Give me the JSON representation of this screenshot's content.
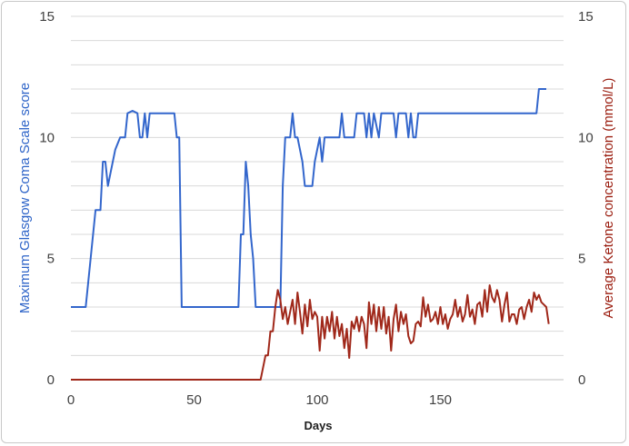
{
  "chart_data": {
    "type": "line",
    "title": "",
    "xlabel": "Days",
    "ylabel_left": "Maximum Glasgow Coma Scale score",
    "ylabel_right": "Average Ketone concentration (mmol/L)",
    "xlim": [
      0,
      200
    ],
    "ylim_left": [
      0,
      15
    ],
    "ylim_right": [
      0,
      15
    ],
    "x_ticks": [
      "0",
      "50",
      "100",
      "150"
    ],
    "y_ticks_left": [
      "0",
      "5",
      "10",
      "15"
    ],
    "y_ticks_right": [
      "0",
      "5",
      "10",
      "15"
    ],
    "grid": "horizontal, every 1 unit",
    "series": [
      {
        "axis": "left",
        "color": "#3366cc",
        "points": [
          [
            0,
            3
          ],
          [
            6,
            3
          ],
          [
            8,
            5
          ],
          [
            10,
            7
          ],
          [
            12,
            7
          ],
          [
            13,
            9
          ],
          [
            14,
            9
          ],
          [
            15,
            8
          ],
          [
            16,
            8.5
          ],
          [
            18,
            9.5
          ],
          [
            20,
            10
          ],
          [
            22,
            10
          ],
          [
            23,
            11
          ],
          [
            25,
            11.1
          ],
          [
            27,
            11
          ],
          [
            28,
            10
          ],
          [
            29,
            10
          ],
          [
            30,
            11
          ],
          [
            31,
            10
          ],
          [
            32,
            11
          ],
          [
            33,
            11
          ],
          [
            42,
            11
          ],
          [
            43,
            10
          ],
          [
            44,
            10
          ],
          [
            45,
            3
          ],
          [
            68,
            3
          ],
          [
            69,
            6
          ],
          [
            70,
            6
          ],
          [
            71,
            9
          ],
          [
            72,
            8
          ],
          [
            73,
            6
          ],
          [
            74,
            5
          ],
          [
            75,
            3
          ],
          [
            85,
            3
          ],
          [
            86,
            8
          ],
          [
            87,
            10
          ],
          [
            89,
            10
          ],
          [
            90,
            11
          ],
          [
            91,
            10
          ],
          [
            92,
            10
          ],
          [
            94,
            9
          ],
          [
            95,
            8
          ],
          [
            98,
            8
          ],
          [
            99,
            9
          ],
          [
            101,
            10
          ],
          [
            102,
            9
          ],
          [
            103,
            10
          ],
          [
            109,
            10
          ],
          [
            110,
            11
          ],
          [
            111,
            10
          ],
          [
            115,
            10
          ],
          [
            116,
            11
          ],
          [
            119,
            11
          ],
          [
            120,
            10
          ],
          [
            121,
            11
          ],
          [
            122,
            10
          ],
          [
            123,
            11
          ],
          [
            125,
            10
          ],
          [
            126,
            11
          ],
          [
            131,
            11
          ],
          [
            132,
            10
          ],
          [
            133,
            11
          ],
          [
            136,
            11
          ],
          [
            137,
            10
          ],
          [
            138,
            11
          ],
          [
            139,
            10
          ],
          [
            140,
            10
          ],
          [
            141,
            11
          ],
          [
            189,
            11
          ],
          [
            190,
            12
          ],
          [
            193,
            12
          ]
        ]
      },
      {
        "axis": "right",
        "color": "#a0281a",
        "points": [
          [
            0,
            0
          ],
          [
            77,
            0
          ],
          [
            78,
            0.5
          ],
          [
            79,
            1
          ],
          [
            80,
            1
          ],
          [
            81,
            2
          ],
          [
            82,
            2
          ],
          [
            83,
            3
          ],
          [
            84,
            3.7
          ],
          [
            85,
            3.3
          ],
          [
            86,
            2.5
          ],
          [
            87,
            3
          ],
          [
            88,
            2.3
          ],
          [
            89,
            2.8
          ],
          [
            90,
            3.3
          ],
          [
            91,
            2.3
          ],
          [
            92,
            3.6
          ],
          [
            93,
            2.8
          ],
          [
            94,
            1.9
          ],
          [
            95,
            3.1
          ],
          [
            96,
            2.2
          ],
          [
            97,
            3.3
          ],
          [
            98,
            2.5
          ],
          [
            99,
            2.8
          ],
          [
            100,
            2.6
          ],
          [
            101,
            1.2
          ],
          [
            102,
            2.6
          ],
          [
            103,
            1.7
          ],
          [
            104,
            2.6
          ],
          [
            105,
            2.0
          ],
          [
            106,
            2.8
          ],
          [
            107,
            1.7
          ],
          [
            108,
            2.6
          ],
          [
            109,
            1.8
          ],
          [
            110,
            2.3
          ],
          [
            111,
            1.3
          ],
          [
            112,
            2.1
          ],
          [
            113,
            0.9
          ],
          [
            114,
            2.4
          ],
          [
            115,
            2.1
          ],
          [
            116,
            2.6
          ],
          [
            117,
            2.0
          ],
          [
            118,
            2.6
          ],
          [
            119,
            2.3
          ],
          [
            120,
            1.3
          ],
          [
            121,
            3.2
          ],
          [
            122,
            2.3
          ],
          [
            123,
            3.1
          ],
          [
            124,
            2.0
          ],
          [
            125,
            3.0
          ],
          [
            126,
            2.1
          ],
          [
            127,
            3.0
          ],
          [
            128,
            1.9
          ],
          [
            129,
            2.6
          ],
          [
            130,
            1.2
          ],
          [
            131,
            2.5
          ],
          [
            132,
            3.1
          ],
          [
            133,
            2.0
          ],
          [
            134,
            2.8
          ],
          [
            135,
            2.3
          ],
          [
            136,
            2.7
          ],
          [
            137,
            1.8
          ],
          [
            138,
            1.5
          ],
          [
            139,
            1.6
          ],
          [
            140,
            2.3
          ],
          [
            141,
            2.4
          ],
          [
            142,
            2.2
          ],
          [
            143,
            3.4
          ],
          [
            144,
            2.6
          ],
          [
            145,
            3.1
          ],
          [
            146,
            2.4
          ],
          [
            147,
            2.5
          ],
          [
            148,
            2.8
          ],
          [
            149,
            2.3
          ],
          [
            150,
            3.0
          ],
          [
            151,
            2.3
          ],
          [
            152,
            2.7
          ],
          [
            153,
            2.1
          ],
          [
            154,
            2.5
          ],
          [
            155,
            2.7
          ],
          [
            156,
            3.3
          ],
          [
            157,
            2.6
          ],
          [
            158,
            3.0
          ],
          [
            159,
            2.4
          ],
          [
            160,
            2.7
          ],
          [
            161,
            3.5
          ],
          [
            162,
            2.6
          ],
          [
            163,
            2.9
          ],
          [
            164,
            2.3
          ],
          [
            165,
            3.1
          ],
          [
            166,
            3.2
          ],
          [
            167,
            2.6
          ],
          [
            168,
            3.7
          ],
          [
            169,
            2.8
          ],
          [
            170,
            3.9
          ],
          [
            171,
            3.4
          ],
          [
            172,
            3.2
          ],
          [
            173,
            3.7
          ],
          [
            174,
            3.3
          ],
          [
            175,
            2.4
          ],
          [
            176,
            3.1
          ],
          [
            177,
            3.6
          ],
          [
            178,
            2.4
          ],
          [
            179,
            2.7
          ],
          [
            180,
            2.7
          ],
          [
            181,
            2.3
          ],
          [
            182,
            2.9
          ],
          [
            183,
            3.0
          ],
          [
            184,
            2.5
          ],
          [
            185,
            3.0
          ],
          [
            186,
            3.3
          ],
          [
            187,
            2.8
          ],
          [
            188,
            3.6
          ],
          [
            189,
            3.3
          ],
          [
            190,
            3.5
          ],
          [
            191,
            3.2
          ],
          [
            192,
            3.1
          ],
          [
            193,
            3.0
          ],
          [
            194,
            2.3
          ]
        ]
      }
    ]
  }
}
